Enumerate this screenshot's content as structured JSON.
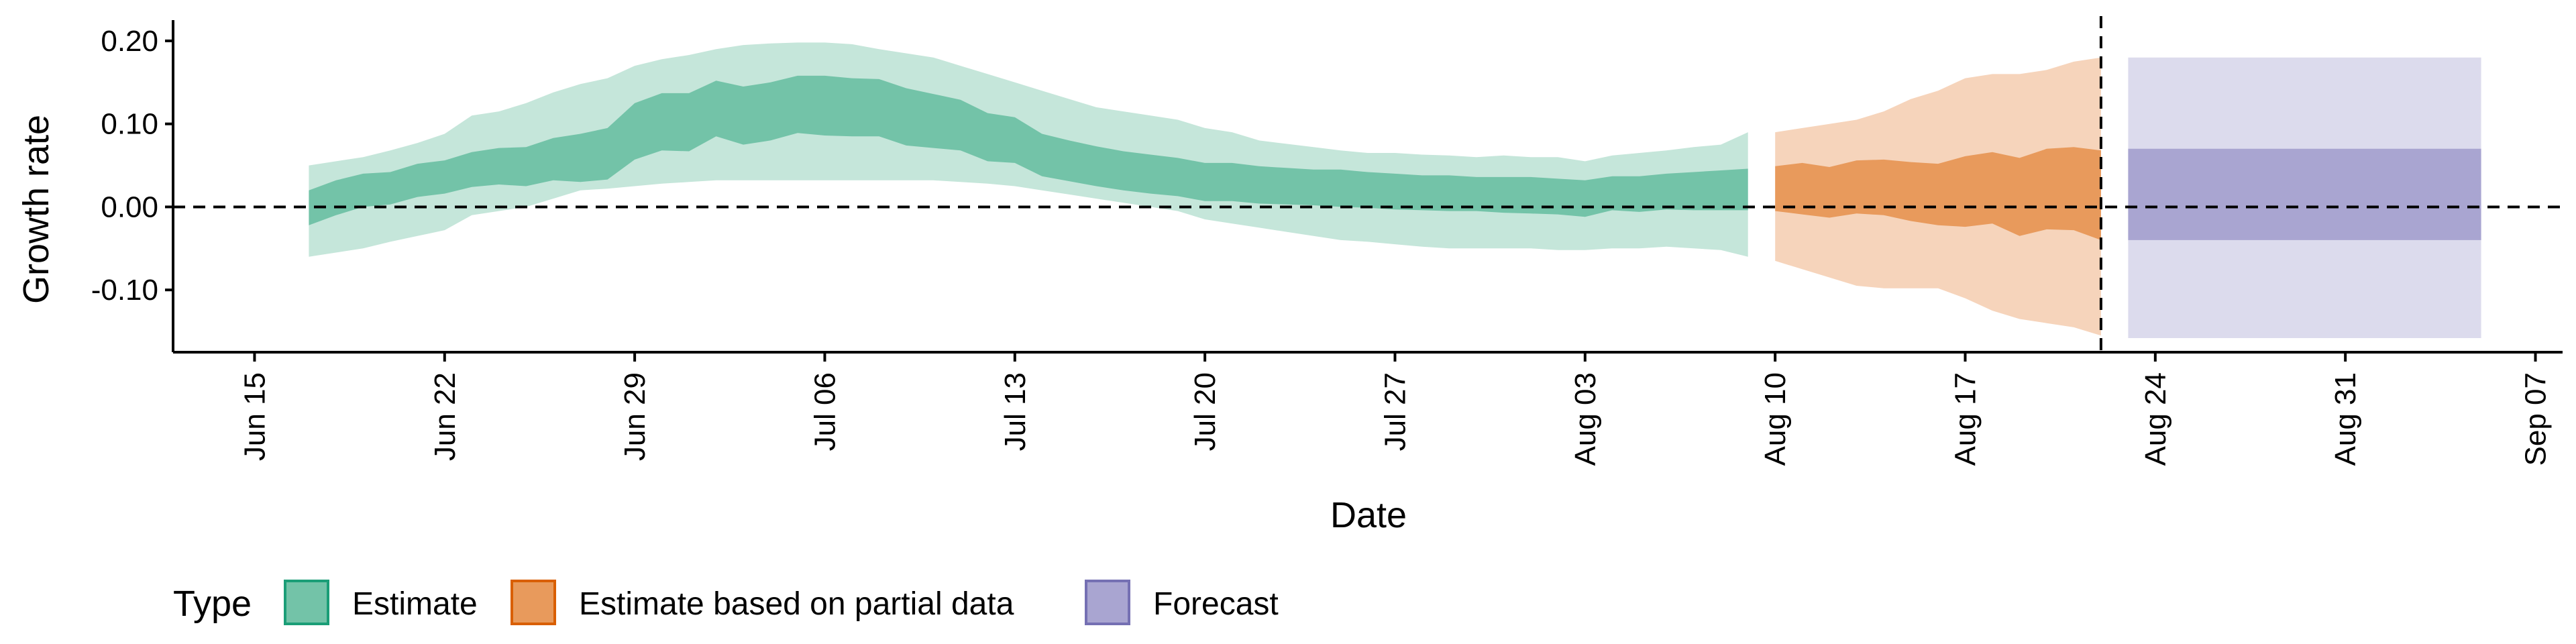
{
  "chart_data": {
    "type": "area",
    "title": "",
    "xlabel": "Date",
    "ylabel": "Growth rate",
    "x_range": [
      "2020-06-12",
      "2020-09-08"
    ],
    "ylim": [
      -0.175,
      0.225
    ],
    "y_ticks": [
      {
        "value": 0.2,
        "label": "0.20"
      },
      {
        "value": 0.1,
        "label": "0.10"
      },
      {
        "value": 0.0,
        "label": "0.00"
      },
      {
        "value": -0.1,
        "label": "-0.10"
      }
    ],
    "x_ticks": [
      {
        "date": "2020-06-15",
        "label": "Jun 15"
      },
      {
        "date": "2020-06-22",
        "label": "Jun 22"
      },
      {
        "date": "2020-06-29",
        "label": "Jun 29"
      },
      {
        "date": "2020-07-06",
        "label": "Jul 06"
      },
      {
        "date": "2020-07-13",
        "label": "Jul 13"
      },
      {
        "date": "2020-07-20",
        "label": "Jul 20"
      },
      {
        "date": "2020-07-27",
        "label": "Jul 27"
      },
      {
        "date": "2020-08-03",
        "label": "Aug 03"
      },
      {
        "date": "2020-08-10",
        "label": "Aug 10"
      },
      {
        "date": "2020-08-17",
        "label": "Aug 17"
      },
      {
        "date": "2020-08-24",
        "label": "Aug 24"
      },
      {
        "date": "2020-08-31",
        "label": "Aug 31"
      },
      {
        "date": "2020-09-07",
        "label": "Sep 07"
      }
    ],
    "grid": false,
    "reference_lines": {
      "horizontal_dashed_y": 0,
      "vertical_dashed_date": "2020-08-22"
    },
    "legend": {
      "title": "Type",
      "position": "bottom-left",
      "entries": [
        {
          "label": "Estimate",
          "fill": "#73c3a8",
          "border": "#1b9e77"
        },
        {
          "label": "Estimate based on partial data",
          "fill": "#e89a5c",
          "border": "#d95f02"
        },
        {
          "label": "Forecast",
          "fill": "#a9a5d1",
          "border": "#7570b3"
        }
      ]
    },
    "series": [
      {
        "name": "Estimate",
        "color_outer": "#c5e6da",
        "color_inner": "#73c3a8",
        "dates": [
          "2020-06-17",
          "2020-06-18",
          "2020-06-19",
          "2020-06-20",
          "2020-06-21",
          "2020-06-22",
          "2020-06-23",
          "2020-06-24",
          "2020-06-25",
          "2020-06-26",
          "2020-06-27",
          "2020-06-28",
          "2020-06-29",
          "2020-06-30",
          "2020-07-01",
          "2020-07-02",
          "2020-07-03",
          "2020-07-04",
          "2020-07-05",
          "2020-07-06",
          "2020-07-07",
          "2020-07-08",
          "2020-07-09",
          "2020-07-10",
          "2020-07-11",
          "2020-07-12",
          "2020-07-13",
          "2020-07-14",
          "2020-07-15",
          "2020-07-16",
          "2020-07-17",
          "2020-07-18",
          "2020-07-19",
          "2020-07-20",
          "2020-07-21",
          "2020-07-22",
          "2020-07-23",
          "2020-07-24",
          "2020-07-25",
          "2020-07-26",
          "2020-07-27",
          "2020-07-28",
          "2020-07-29",
          "2020-07-30",
          "2020-07-31",
          "2020-08-01",
          "2020-08-02",
          "2020-08-03",
          "2020-08-04",
          "2020-08-05",
          "2020-08-06",
          "2020-08-07",
          "2020-08-08",
          "2020-08-09"
        ],
        "upper_90": [
          0.05,
          0.055,
          0.06,
          0.068,
          0.077,
          0.088,
          0.11,
          0.115,
          0.125,
          0.138,
          0.148,
          0.155,
          0.17,
          0.178,
          0.183,
          0.19,
          0.195,
          0.197,
          0.198,
          0.198,
          0.196,
          0.19,
          0.185,
          0.18,
          0.17,
          0.16,
          0.15,
          0.14,
          0.13,
          0.12,
          0.115,
          0.11,
          0.105,
          0.095,
          0.09,
          0.08,
          0.076,
          0.072,
          0.068,
          0.065,
          0.065,
          0.063,
          0.062,
          0.06,
          0.062,
          0.06,
          0.06,
          0.055,
          0.062,
          0.065,
          0.068,
          0.072,
          0.075,
          0.09
        ],
        "upper_50": [
          0.02,
          0.032,
          0.04,
          0.042,
          0.052,
          0.056,
          0.066,
          0.071,
          0.072,
          0.083,
          0.088,
          0.095,
          0.125,
          0.137,
          0.137,
          0.152,
          0.145,
          0.15,
          0.158,
          0.158,
          0.155,
          0.154,
          0.143,
          0.136,
          0.129,
          0.113,
          0.108,
          0.088,
          0.08,
          0.073,
          0.067,
          0.063,
          0.059,
          0.053,
          0.053,
          0.049,
          0.047,
          0.045,
          0.045,
          0.042,
          0.04,
          0.038,
          0.038,
          0.036,
          0.036,
          0.036,
          0.034,
          0.032,
          0.037,
          0.037,
          0.04,
          0.042,
          0.044,
          0.046
        ],
        "lower_50": [
          -0.022,
          -0.01,
          0.0,
          0.003,
          0.012,
          0.016,
          0.024,
          0.027,
          0.025,
          0.032,
          0.03,
          0.033,
          0.057,
          0.068,
          0.067,
          0.085,
          0.075,
          0.08,
          0.089,
          0.086,
          0.085,
          0.085,
          0.074,
          0.071,
          0.068,
          0.055,
          0.053,
          0.037,
          0.031,
          0.025,
          0.02,
          0.016,
          0.013,
          0.007,
          0.007,
          0.004,
          0.003,
          0.002,
          0.0,
          -0.001,
          -0.003,
          -0.004,
          -0.005,
          -0.005,
          -0.007,
          -0.008,
          -0.009,
          -0.012,
          -0.004,
          -0.006,
          -0.003,
          -0.004,
          -0.004,
          -0.004
        ],
        "lower_90": [
          -0.06,
          -0.055,
          -0.05,
          -0.042,
          -0.035,
          -0.028,
          -0.01,
          -0.005,
          0.0,
          0.01,
          0.02,
          0.022,
          0.025,
          0.028,
          0.03,
          0.032,
          0.032,
          0.032,
          0.032,
          0.032,
          0.032,
          0.032,
          0.032,
          0.032,
          0.03,
          0.028,
          0.025,
          0.02,
          0.015,
          0.01,
          0.005,
          0.0,
          -0.005,
          -0.015,
          -0.02,
          -0.025,
          -0.03,
          -0.035,
          -0.04,
          -0.042,
          -0.045,
          -0.048,
          -0.05,
          -0.05,
          -0.05,
          -0.05,
          -0.052,
          -0.052,
          -0.05,
          -0.05,
          -0.048,
          -0.05,
          -0.052,
          -0.06
        ]
      },
      {
        "name": "Estimate based on partial data",
        "color_outer": "#f6d4bb",
        "color_inner": "#e89a5c",
        "dates": [
          "2020-08-10",
          "2020-08-11",
          "2020-08-12",
          "2020-08-13",
          "2020-08-14",
          "2020-08-15",
          "2020-08-16",
          "2020-08-17",
          "2020-08-18",
          "2020-08-19",
          "2020-08-20",
          "2020-08-21",
          "2020-08-22"
        ],
        "upper_90": [
          0.09,
          0.095,
          0.1,
          0.105,
          0.115,
          0.13,
          0.14,
          0.155,
          0.16,
          0.16,
          0.165,
          0.175,
          0.18
        ],
        "upper_50": [
          0.049,
          0.053,
          0.048,
          0.056,
          0.057,
          0.054,
          0.052,
          0.061,
          0.066,
          0.059,
          0.07,
          0.072,
          0.068
        ],
        "lower_50": [
          -0.005,
          -0.009,
          -0.013,
          -0.008,
          -0.01,
          -0.017,
          -0.022,
          -0.024,
          -0.02,
          -0.035,
          -0.027,
          -0.028,
          -0.04
        ],
        "lower_90": [
          -0.065,
          -0.075,
          -0.085,
          -0.095,
          -0.098,
          -0.098,
          -0.098,
          -0.11,
          -0.125,
          -0.135,
          -0.14,
          -0.145,
          -0.155
        ]
      },
      {
        "name": "Forecast",
        "color_outer": "#dcdbed",
        "color_inner": "#a9a5d1",
        "dates": [
          "2020-08-23",
          "2020-09-05"
        ],
        "upper_90": [
          0.18,
          0.18
        ],
        "upper_50": [
          0.07,
          0.07
        ],
        "lower_50": [
          -0.04,
          -0.04
        ],
        "lower_90": [
          -0.158,
          -0.158
        ]
      }
    ]
  }
}
